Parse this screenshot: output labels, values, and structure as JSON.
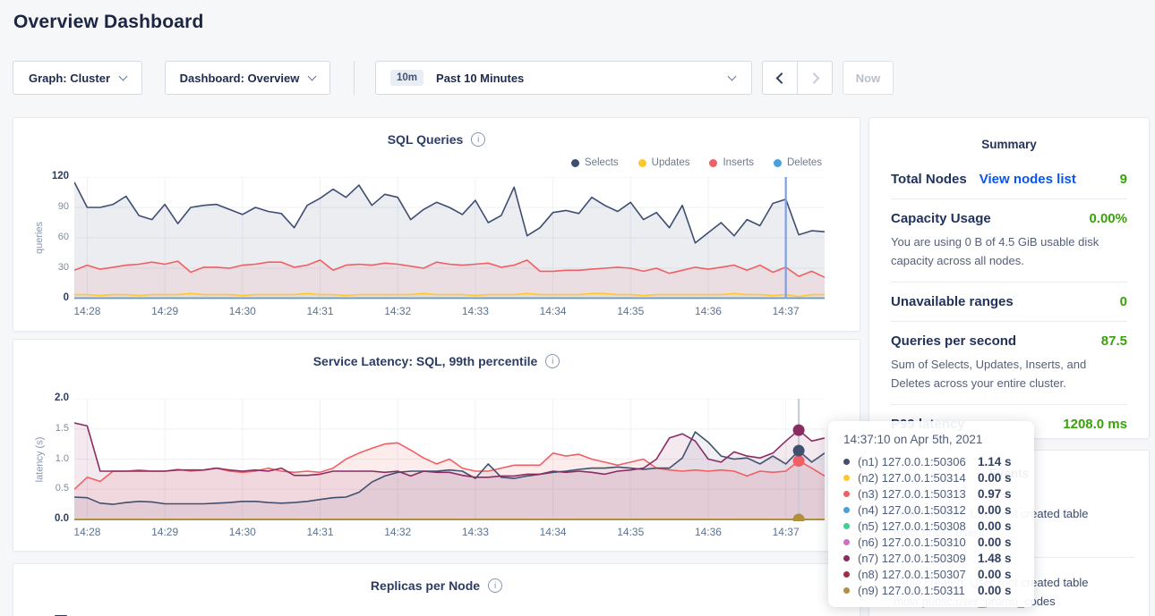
{
  "page": {
    "title": "Overview Dashboard"
  },
  "toolbar": {
    "graph_dropdown": "Graph: Cluster",
    "dashboard_dropdown": "Dashboard: Overview",
    "time_badge": "10m",
    "time_label": "Past 10 Minutes",
    "now_label": "Now"
  },
  "summary": {
    "heading": "Summary",
    "total_nodes_label": "Total Nodes",
    "total_nodes_link": "View nodes list",
    "total_nodes_value": "9",
    "capacity_label": "Capacity Usage",
    "capacity_value": "0.00%",
    "capacity_desc": "You are using 0 B of 4.5 GiB usable disk capacity across all nodes.",
    "unavailable_label": "Unavailable ranges",
    "unavailable_value": "0",
    "qps_label": "Queries per second",
    "qps_value": "87.5",
    "qps_desc": "Sum of Selects, Updates, Inserts, and Deletes across your entire cluster.",
    "p99_label": "P99 latency",
    "p99_value": "1208.0 ms"
  },
  "events": {
    "heading": "Events",
    "items": [
      "Table created: User root created table movr.public.users",
      "Table created: User root created table movr.public.user_promo_codes"
    ]
  },
  "tooltip": {
    "title": "14:37:10 on Apr 5th, 2021",
    "rows": [
      {
        "color": "#41506e",
        "label": "(n1) 127.0.0.1:50306",
        "value": "1.14 s"
      },
      {
        "color": "#ffc72e",
        "label": "(n2) 127.0.0.1:50314",
        "value": "0.00 s"
      },
      {
        "color": "#f05f64",
        "label": "(n3) 127.0.0.1:50313",
        "value": "0.97 s"
      },
      {
        "color": "#4a9fdf",
        "label": "(n4) 127.0.0.1:50312",
        "value": "0.00 s"
      },
      {
        "color": "#3fd18f",
        "label": "(n5) 127.0.0.1:50308",
        "value": "0.00 s"
      },
      {
        "color": "#d06ec6",
        "label": "(n6) 127.0.0.1:50310",
        "value": "0.00 s"
      },
      {
        "color": "#8a2b64",
        "label": "(n7) 127.0.0.1:50309",
        "value": "1.48 s"
      },
      {
        "color": "#a32d49",
        "label": "(n8) 127.0.0.1:50307",
        "value": "0.00 s"
      },
      {
        "color": "#b0903f",
        "label": "(n9) 127.0.0.1:50311",
        "value": "0.00 s"
      }
    ]
  },
  "chart_data": [
    {
      "type": "area",
      "title": "SQL Queries",
      "ylabel": "queries",
      "xlabel": "",
      "ylim": [
        0,
        120
      ],
      "yticks": [
        0,
        30,
        60,
        90,
        120
      ],
      "yticklabels": [
        "0",
        "30",
        "60",
        "90",
        "120"
      ],
      "x_start": "14:27:50",
      "x_step_seconds": 10,
      "span_seconds": 580,
      "first_tick_offset_seconds": 10,
      "tick_interval_seconds": 60,
      "xticklabels": [
        "14:28",
        "14:29",
        "14:30",
        "14:31",
        "14:32",
        "14:33",
        "14:34",
        "14:35",
        "14:36",
        "14:37"
      ],
      "grid": true,
      "legend_position": "top-right",
      "hover_offset_seconds": 550,
      "hover_color": "#7d9fe8",
      "series": [
        {
          "name": "Selects",
          "color": "#3e4d71",
          "fill_opacity": 0.1,
          "values": [
            115,
            90,
            90,
            93,
            101,
            82,
            78,
            93,
            74,
            90,
            92,
            93,
            88,
            83,
            90,
            86,
            84,
            70,
            92,
            99,
            108,
            100,
            112,
            92,
            103,
            100,
            78,
            88,
            95,
            90,
            83,
            97,
            75,
            82,
            110,
            62,
            70,
            85,
            87,
            84,
            100,
            92,
            86,
            95,
            78,
            85,
            70,
            92,
            55,
            65,
            75,
            62,
            78,
            72,
            94,
            98,
            63,
            67,
            66
          ]
        },
        {
          "name": "Updates",
          "color": "#ffc72e",
          "fill_opacity": 0.12,
          "values": [
            4,
            4,
            3,
            4,
            4,
            3,
            4,
            4,
            4,
            5,
            4,
            4,
            4,
            3,
            4,
            4,
            4,
            4,
            5,
            4,
            4,
            3,
            4,
            4,
            4,
            4,
            4,
            5,
            4,
            4,
            4,
            3,
            4,
            4,
            4,
            5,
            4,
            4,
            4,
            4,
            5,
            5,
            4,
            4,
            3,
            4,
            4,
            4,
            4,
            4,
            4,
            5,
            4,
            4,
            3,
            4,
            2,
            4,
            4
          ]
        },
        {
          "name": "Inserts",
          "color": "#f05f64",
          "fill_opacity": 0.1,
          "values": [
            28,
            33,
            29,
            31,
            33,
            34,
            36,
            34,
            37,
            26,
            31,
            31,
            30,
            33,
            34,
            36,
            36,
            31,
            33,
            38,
            28,
            33,
            34,
            33,
            35,
            34,
            32,
            30,
            36,
            34,
            33,
            34,
            35,
            31,
            33,
            38,
            27,
            27,
            28,
            28,
            29,
            30,
            31,
            30,
            27,
            30,
            25,
            28,
            31,
            29,
            31,
            33,
            28,
            33,
            26,
            31,
            22,
            27,
            21
          ]
        },
        {
          "name": "Deletes",
          "color": "#4a9fdf",
          "fill_opacity": 0,
          "constant": 0.5
        }
      ]
    },
    {
      "type": "area",
      "title": "Service Latency: SQL, 99th percentile",
      "ylabel": "latency (s)",
      "xlabel": "",
      "ylim": [
        0,
        2
      ],
      "yticks": [
        0,
        0.5,
        1,
        1.5,
        2
      ],
      "yticklabels": [
        "0.0",
        "0.5",
        "1.0",
        "1.5",
        "2.0"
      ],
      "x_start": "14:27:50",
      "x_step_seconds": 10,
      "span_seconds": 580,
      "first_tick_offset_seconds": 10,
      "tick_interval_seconds": 60,
      "xticklabels": [
        "14:28",
        "14:29",
        "14:30",
        "14:31",
        "14:32",
        "14:33",
        "14:34",
        "14:35",
        "14:36",
        "14:37"
      ],
      "grid": true,
      "hover_time": "14:37:10",
      "hover_offset_seconds": 560,
      "hover_color": "#c7cdd8",
      "series": [
        {
          "name": "(n2) 127.0.0.1:50314",
          "color": "#ffc72e",
          "constant": 0
        },
        {
          "name": "(n4) 127.0.0.1:50312",
          "color": "#4a9fdf",
          "constant": 0
        },
        {
          "name": "(n5) 127.0.0.1:50308",
          "color": "#3fd18f",
          "constant": 0
        },
        {
          "name": "(n6) 127.0.0.1:50310",
          "color": "#d06ec6",
          "constant": 0
        },
        {
          "name": "(n8) 127.0.0.1:50307",
          "color": "#a32d49",
          "constant": 0
        },
        {
          "name": "(n3) 127.0.0.1:50313",
          "color": "#f05f64",
          "fill_opacity": 0.12,
          "dot": true,
          "values": [
            0.5,
            0.7,
            0.63,
            0.8,
            0.8,
            0.82,
            0.8,
            0.8,
            0.83,
            0.8,
            0.82,
            0.85,
            0.8,
            0.78,
            0.8,
            0.85,
            0.8,
            0.78,
            0.8,
            0.78,
            0.85,
            1.0,
            1.1,
            1.18,
            1.25,
            1.27,
            1.15,
            1.02,
            0.92,
            1.0,
            0.85,
            0.8,
            0.8,
            0.85,
            0.9,
            0.9,
            0.9,
            1.1,
            1.05,
            1.08,
            1.0,
            0.95,
            0.9,
            0.95,
            1.0,
            0.85,
            0.82,
            0.8,
            0.82,
            0.8,
            0.82,
            0.8,
            0.72,
            0.8,
            0.78,
            0.8,
            0.97,
            0.85,
            0.72
          ]
        },
        {
          "name": "(n1) 127.0.0.1:50306",
          "color": "#41506e",
          "fill_opacity": 0.08,
          "dot": true,
          "values": [
            0.37,
            0.36,
            0.27,
            0.25,
            0.28,
            0.3,
            0.29,
            0.26,
            0.26,
            0.26,
            0.26,
            0.27,
            0.28,
            0.3,
            0.3,
            0.28,
            0.27,
            0.28,
            0.3,
            0.33,
            0.36,
            0.37,
            0.45,
            0.62,
            0.72,
            0.78,
            0.8,
            0.8,
            0.8,
            0.82,
            0.8,
            0.68,
            0.92,
            0.7,
            0.68,
            0.72,
            0.75,
            0.78,
            0.8,
            0.83,
            0.85,
            0.85,
            0.87,
            0.85,
            0.83,
            0.85,
            0.85,
            1.02,
            1.45,
            1.28,
            1.05,
            1.0,
            1.02,
            0.92,
            1.05,
            0.92,
            1.14,
            0.95,
            1.1
          ]
        },
        {
          "name": "(n7) 127.0.0.1:50309",
          "color": "#8a2b64",
          "fill_opacity": 0.1,
          "dot": true,
          "values": [
            1.6,
            1.55,
            0.8,
            0.8,
            0.8,
            0.8,
            0.8,
            0.8,
            0.82,
            0.82,
            0.82,
            0.85,
            0.82,
            0.8,
            0.82,
            0.8,
            0.85,
            0.73,
            0.73,
            0.75,
            0.8,
            0.8,
            0.8,
            0.8,
            0.78,
            0.8,
            0.72,
            0.8,
            0.78,
            0.78,
            0.73,
            0.7,
            0.7,
            0.72,
            0.72,
            0.75,
            0.75,
            0.8,
            0.78,
            0.8,
            0.78,
            0.75,
            0.8,
            0.82,
            0.85,
            1.0,
            1.35,
            1.42,
            1.3,
            1.0,
            0.95,
            1.12,
            1.05,
            1.02,
            1.1,
            1.3,
            1.48,
            1.3,
            1.35
          ]
        },
        {
          "name": "(n9) 127.0.0.1:50311",
          "color": "#b0903f",
          "constant": 0,
          "dot": true,
          "width": 2
        }
      ]
    },
    {
      "type": "line",
      "title": "Replicas per Node"
    }
  ]
}
